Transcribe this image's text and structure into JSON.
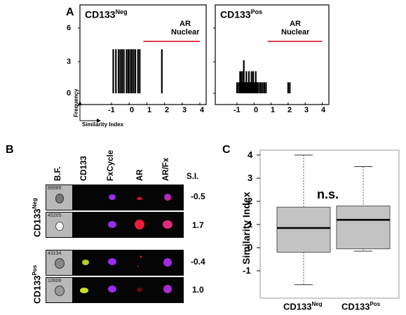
{
  "panel_a": {
    "letter": "A",
    "neg_title": "CD133",
    "neg_sup": "Neg",
    "pos_title": "CD133",
    "pos_sup": "Pos",
    "ar_label_line1": "AR",
    "ar_label_line2": "Nuclear",
    "y_ticks": [
      "6",
      "3",
      "0"
    ],
    "x_ticks": [
      "-1",
      "0",
      "1",
      "2",
      "3",
      "4"
    ],
    "frequency_label": "Frequency",
    "similarity_label": "Similarity Index",
    "red_line_color": "#d9404a"
  },
  "panel_b": {
    "letter": "B",
    "columns": [
      "B.F.",
      "CD133",
      "FxCycle",
      "AR",
      "AR/Fx",
      "S.I."
    ],
    "groups": [
      {
        "label": "CD133",
        "sup": "Neg",
        "rows": [
          {
            "id": "89986",
            "si": "-0.5",
            "cd133": false,
            "ar": "dim"
          },
          {
            "id": "45205",
            "si": "1.7",
            "cd133": false,
            "ar": "bright"
          }
        ]
      },
      {
        "label": "CD133",
        "sup": "Pos",
        "rows": [
          {
            "id": "43134",
            "si": "-0.4",
            "cd133": true,
            "ar": "dot"
          },
          {
            "id": "10606",
            "si": "1.0",
            "cd133": true,
            "ar": "faint"
          }
        ]
      }
    ]
  },
  "panel_c": {
    "letter": "C",
    "ylabel": "Similarity Index",
    "annotation": "n.s.",
    "x1_label": "CD133",
    "x1_sup": "Neg",
    "x2_label": "CD133",
    "x2_sup": "Pos",
    "y_ticks": [
      "4",
      "3",
      "2",
      "1",
      "0",
      "-1"
    ]
  },
  "chart_data": [
    {
      "type": "bar",
      "title": "CD133Neg",
      "xlabel": "Similarity Index",
      "ylabel": "Frequency",
      "xlim": [
        -1.5,
        4
      ],
      "ylim": [
        0,
        6
      ],
      "x": [
        -0.9,
        -0.75,
        -0.6,
        -0.5,
        -0.4,
        -0.3,
        -0.15,
        -0.05,
        0.05,
        0.15,
        0.25,
        0.35,
        0.5,
        0.6,
        1.85
      ],
      "values": [
        4,
        4,
        4,
        4,
        4,
        4,
        4,
        4,
        4,
        4,
        4,
        4,
        4,
        4,
        4
      ],
      "annotation": {
        "label": "AR Nuclear",
        "range": [
          0.8,
          4
        ]
      }
    },
    {
      "type": "bar",
      "title": "CD133Pos",
      "xlabel": "Similarity Index",
      "ylabel": "Frequency",
      "xlim": [
        -1.5,
        4
      ],
      "ylim": [
        0,
        6
      ],
      "x": [
        -1.0,
        -0.9,
        -0.82,
        -0.75,
        -0.7,
        -0.65,
        -0.6,
        -0.55,
        -0.5,
        -0.45,
        -0.4,
        -0.35,
        -0.3,
        -0.25,
        -0.2,
        -0.15,
        -0.1,
        -0.05,
        0.0,
        0.05,
        0.1,
        0.15,
        0.2,
        0.3,
        0.4,
        0.5,
        0.6,
        0.7,
        2.0,
        2.1
      ],
      "values": [
        1,
        1,
        2,
        2,
        1,
        2,
        3,
        1,
        1,
        2,
        1,
        1,
        2,
        1,
        1,
        2,
        1,
        2,
        1,
        1,
        2,
        1,
        1,
        1,
        1,
        1,
        1,
        1,
        1,
        1
      ],
      "annotation": {
        "label": "AR Nuclear",
        "range": [
          0.8,
          4
        ]
      }
    },
    {
      "type": "box",
      "ylabel": "Similarity Index",
      "ylim": [
        -1.8,
        4.3
      ],
      "categories": [
        "CD133Neg",
        "CD133Pos"
      ],
      "boxes": [
        {
          "min": -1.6,
          "q1": -0.2,
          "median": 0.85,
          "q3": 1.75,
          "max": 4.0
        },
        {
          "min": -0.15,
          "q1": -0.05,
          "median": 1.2,
          "q3": 1.8,
          "max": 3.5
        }
      ],
      "annotation": "n.s."
    }
  ]
}
